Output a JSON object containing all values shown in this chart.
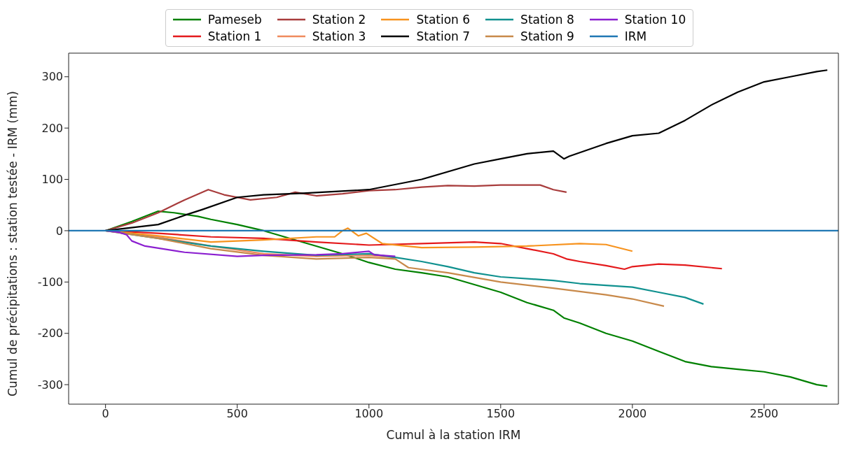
{
  "chart_data": {
    "type": "line",
    "xlabel": "Cumul à la station IRM",
    "ylabel": "Cumul de précipitations : station testée - IRM (mm)",
    "xlim": [
      -140,
      2782
    ],
    "ylim": [
      -338,
      346
    ],
    "xticks": [
      0,
      500,
      1000,
      1500,
      2000,
      2500
    ],
    "yticks": [
      -300,
      -200,
      -100,
      0,
      100,
      200,
      300
    ],
    "grid": false,
    "legend": "top",
    "marker": "none",
    "line_style": "solid",
    "series": [
      {
        "name": "Pameseb",
        "color": "#008000",
        "x": [
          0,
          100,
          200,
          260,
          350,
          400,
          500,
          600,
          700,
          800,
          900,
          1000,
          1100,
          1200,
          1300,
          1400,
          1500,
          1600,
          1700,
          1740,
          1800,
          1900,
          2000,
          2100,
          2200,
          2300,
          2400,
          2500,
          2600,
          2700,
          2740
        ],
        "values": [
          0,
          18,
          38,
          35,
          28,
          22,
          12,
          0,
          -15,
          -30,
          -45,
          -62,
          -75,
          -82,
          -90,
          -105,
          -120,
          -140,
          -155,
          -170,
          -180,
          -200,
          -215,
          -235,
          -255,
          -265,
          -270,
          -275,
          -285,
          -300,
          -303
        ]
      },
      {
        "name": "Station 1",
        "color": "#e41a1c",
        "x": [
          0,
          200,
          400,
          600,
          800,
          1000,
          1200,
          1400,
          1500,
          1600,
          1700,
          1750,
          1800,
          1900,
          1970,
          2000,
          2100,
          2200,
          2300,
          2340
        ],
        "values": [
          0,
          -5,
          -12,
          -15,
          -22,
          -28,
          -25,
          -22,
          -25,
          -35,
          -45,
          -55,
          -60,
          -68,
          -75,
          -70,
          -65,
          -67,
          -72,
          -74
        ]
      },
      {
        "name": "Station 2",
        "color": "#a83c3c",
        "x": [
          0,
          100,
          200,
          300,
          390,
          450,
          550,
          650,
          720,
          800,
          900,
          1000,
          1100,
          1200,
          1300,
          1400,
          1500,
          1650,
          1700,
          1750
        ],
        "values": [
          0,
          15,
          35,
          60,
          80,
          70,
          60,
          65,
          75,
          68,
          72,
          78,
          80,
          85,
          88,
          87,
          89,
          89,
          80,
          75
        ]
      },
      {
        "name": "Station 3",
        "color": "#f08a5d",
        "x": [
          0,
          200,
          400,
          600,
          800,
          1000,
          1100
        ],
        "values": [
          0,
          -12,
          -30,
          -45,
          -50,
          -48,
          -52
        ]
      },
      {
        "name": "Station 6",
        "color": "#f7931e",
        "x": [
          0,
          200,
          400,
          600,
          800,
          870,
          900,
          920,
          960,
          990,
          1050,
          1200,
          1400,
          1600,
          1800,
          1900,
          2000
        ],
        "values": [
          0,
          -10,
          -22,
          -18,
          -12,
          -12,
          0,
          5,
          -10,
          -5,
          -25,
          -33,
          -32,
          -30,
          -25,
          -27,
          -40
        ]
      },
      {
        "name": "Station 7",
        "color": "#000000",
        "x": [
          0,
          200,
          300,
          366,
          500,
          600,
          750,
          1000,
          1200,
          1400,
          1500,
          1600,
          1700,
          1740,
          1760,
          1900,
          2000,
          2100,
          2200,
          2300,
          2400,
          2500,
          2600,
          2700,
          2740
        ],
        "values": [
          0,
          12,
          30,
          41,
          65,
          70,
          73,
          80,
          100,
          130,
          140,
          150,
          155,
          140,
          145,
          170,
          185,
          190,
          215,
          245,
          270,
          290,
          300,
          310,
          313
        ]
      },
      {
        "name": "Station 8",
        "color": "#10918f",
        "x": [
          0,
          200,
          400,
          600,
          800,
          1000,
          1100,
          1200,
          1300,
          1400,
          1500,
          1700,
          1800,
          2000,
          2100,
          2200,
          2270
        ],
        "values": [
          0,
          -15,
          -30,
          -40,
          -48,
          -45,
          -52,
          -60,
          -70,
          -82,
          -90,
          -97,
          -103,
          -110,
          -120,
          -130,
          -143
        ]
      },
      {
        "name": "Station 9",
        "color": "#c8894a",
        "x": [
          0,
          200,
          400,
          600,
          800,
          1000,
          1100,
          1150,
          1300,
          1500,
          1700,
          1900,
          2000,
          2120
        ],
        "values": [
          0,
          -15,
          -35,
          -48,
          -55,
          -52,
          -55,
          -72,
          -82,
          -100,
          -112,
          -125,
          -133,
          -147
        ]
      },
      {
        "name": "Station 10",
        "color": "#8b1fd0",
        "x": [
          0,
          50,
          80,
          100,
          150,
          300,
          500,
          600,
          800,
          900,
          1000,
          1020,
          1100
        ],
        "values": [
          0,
          -3,
          -8,
          -20,
          -30,
          -42,
          -50,
          -48,
          -47,
          -45,
          -40,
          -47,
          -50
        ]
      },
      {
        "name": "IRM",
        "color": "#1f77b4",
        "x": [
          -140,
          2782
        ],
        "values": [
          0,
          0
        ]
      }
    ]
  }
}
